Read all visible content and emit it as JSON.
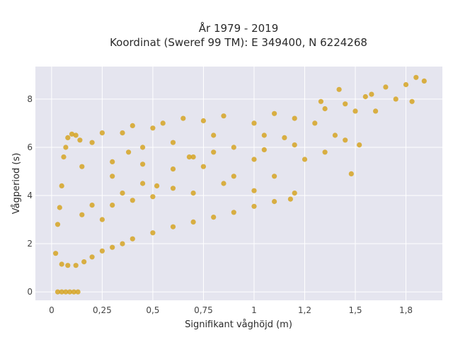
{
  "chart_data": {
    "type": "scatter",
    "title_line1": "År 1979 - 2019",
    "title_line2": "Koordinat (Sweref 99 TM): E 349400, N 6224268",
    "xlabel": "Signifikant våghöjd (m)",
    "ylabel": "Vågperiod (s)",
    "xlim": [
      -0.08,
      1.93
    ],
    "ylim": [
      -0.35,
      9.35
    ],
    "x_ticks": [
      0,
      0.25,
      0.5,
      0.75,
      1,
      1.25,
      1.5,
      1.75
    ],
    "x_tick_labels": [
      "0",
      "0,25",
      "0,5",
      "0,75",
      "1",
      "1,2",
      "1,5",
      "1,8"
    ],
    "y_ticks": [
      0,
      2,
      4,
      6,
      8
    ],
    "y_tick_labels": [
      "0",
      "2",
      "4",
      "6",
      "8"
    ],
    "grid": true,
    "plot_background": "#e5e5ef",
    "marker_color": "#d4a017",
    "series": [
      {
        "points": [
          [
            0.03,
            0
          ],
          [
            0.05,
            0
          ],
          [
            0.07,
            0
          ],
          [
            0.09,
            0
          ],
          [
            0.11,
            0
          ],
          [
            0.13,
            0
          ],
          [
            0.02,
            1.6
          ],
          [
            0.03,
            2.8
          ],
          [
            0.04,
            3.5
          ],
          [
            0.05,
            4.4
          ],
          [
            0.06,
            5.6
          ],
          [
            0.07,
            6.0
          ],
          [
            0.08,
            6.4
          ],
          [
            0.1,
            6.55
          ],
          [
            0.12,
            6.5
          ],
          [
            0.14,
            6.3
          ],
          [
            0.05,
            1.15
          ],
          [
            0.08,
            1.1
          ],
          [
            0.12,
            1.1
          ],
          [
            0.16,
            1.25
          ],
          [
            0.2,
            1.45
          ],
          [
            0.25,
            1.7
          ],
          [
            0.3,
            1.85
          ],
          [
            0.35,
            2.0
          ],
          [
            0.4,
            2.2
          ],
          [
            0.5,
            2.45
          ],
          [
            0.6,
            2.7
          ],
          [
            0.7,
            2.9
          ],
          [
            0.8,
            3.1
          ],
          [
            0.9,
            3.3
          ],
          [
            1.0,
            3.55
          ],
          [
            1.1,
            3.75
          ],
          [
            1.18,
            3.85
          ],
          [
            0.15,
            3.2
          ],
          [
            0.2,
            3.6
          ],
          [
            0.25,
            3.0
          ],
          [
            0.3,
            3.6
          ],
          [
            0.35,
            4.1
          ],
          [
            0.4,
            3.8
          ],
          [
            0.45,
            4.5
          ],
          [
            0.5,
            3.95
          ],
          [
            0.6,
            4.3
          ],
          [
            0.7,
            4.1
          ],
          [
            0.85,
            4.5
          ],
          [
            1.0,
            4.2
          ],
          [
            1.1,
            4.8
          ],
          [
            1.2,
            4.1
          ],
          [
            0.15,
            5.2
          ],
          [
            0.2,
            6.2
          ],
          [
            0.25,
            6.6
          ],
          [
            0.3,
            5.4
          ],
          [
            0.35,
            6.6
          ],
          [
            0.4,
            6.9
          ],
          [
            0.45,
            6.0
          ],
          [
            0.5,
            6.8
          ],
          [
            0.55,
            7.0
          ],
          [
            0.6,
            6.2
          ],
          [
            0.65,
            7.2
          ],
          [
            0.7,
            5.6
          ],
          [
            0.75,
            7.1
          ],
          [
            0.8,
            6.5
          ],
          [
            0.85,
            7.3
          ],
          [
            0.9,
            6.0
          ],
          [
            1.0,
            7.0
          ],
          [
            1.05,
            6.5
          ],
          [
            1.1,
            7.4
          ],
          [
            1.15,
            6.4
          ],
          [
            1.2,
            7.2
          ],
          [
            1.3,
            7.0
          ],
          [
            1.35,
            7.6
          ],
          [
            1.4,
            6.5
          ],
          [
            1.45,
            7.8
          ],
          [
            1.5,
            7.5
          ],
          [
            1.55,
            8.1
          ],
          [
            1.6,
            7.5
          ],
          [
            1.65,
            8.5
          ],
          [
            1.7,
            8.0
          ],
          [
            1.75,
            8.6
          ],
          [
            1.78,
            7.9
          ],
          [
            1.8,
            8.9
          ],
          [
            1.84,
            8.75
          ],
          [
            0.3,
            4.8
          ],
          [
            0.45,
            5.3
          ],
          [
            0.6,
            5.1
          ],
          [
            0.8,
            5.8
          ],
          [
            1.0,
            5.5
          ],
          [
            1.2,
            6.1
          ],
          [
            1.35,
            5.8
          ],
          [
            1.48,
            4.9
          ],
          [
            1.52,
            6.1
          ],
          [
            1.33,
            7.9
          ],
          [
            1.42,
            8.4
          ],
          [
            1.58,
            8.2
          ],
          [
            0.75,
            5.2
          ],
          [
            0.9,
            4.8
          ],
          [
            1.05,
            5.9
          ],
          [
            1.25,
            5.5
          ],
          [
            1.45,
            6.3
          ],
          [
            0.38,
            5.8
          ],
          [
            0.52,
            4.4
          ],
          [
            0.68,
            5.6
          ]
        ]
      }
    ]
  }
}
